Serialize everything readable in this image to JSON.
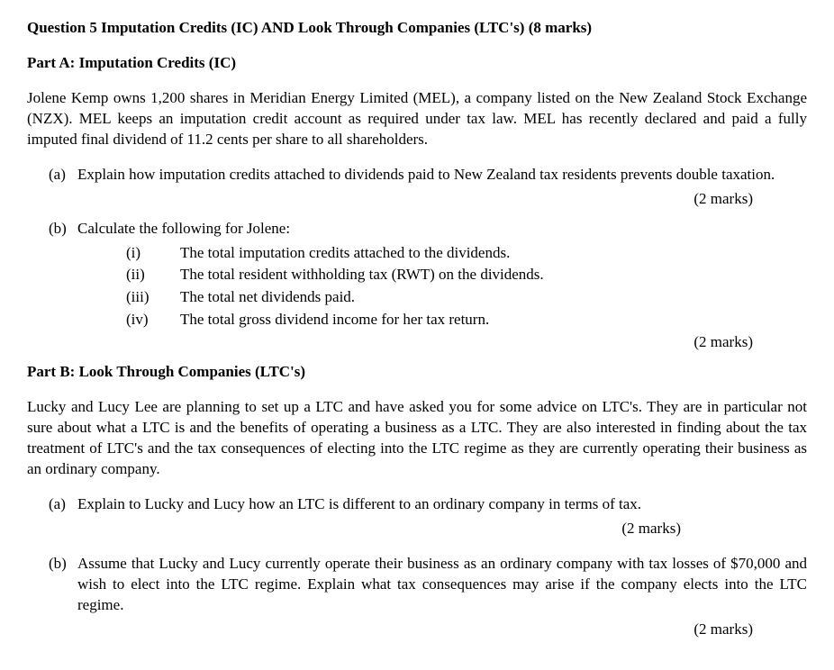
{
  "title": "Question 5 Imputation Credits (IC) AND Look Through Companies (LTC's) (8 marks)",
  "partA": {
    "heading": "Part A: Imputation Credits (IC)",
    "intro": "Jolene Kemp owns 1,200 shares in Meridian Energy Limited (MEL), a company listed on the New Zealand Stock Exchange (NZX). MEL keeps an imputation credit account as required under tax law. MEL has recently declared and paid a fully imputed final dividend of 11.2 cents per share to all shareholders.",
    "a": {
      "label": "(a)",
      "text": "Explain how imputation credits attached to dividends paid to New Zealand tax residents prevents double taxation.",
      "marks": "(2 marks)"
    },
    "b": {
      "label": "(b)",
      "text": "Calculate the following for Jolene:",
      "items": [
        {
          "label": "(i)",
          "text": "The total imputation credits attached to the dividends."
        },
        {
          "label": "(ii)",
          "text": "The total resident withholding tax (RWT) on the dividends."
        },
        {
          "label": "(iii)",
          "text": "The total net dividends paid."
        },
        {
          "label": "(iv)",
          "text": "The total gross dividend income for her tax return."
        }
      ],
      "marks": "(2 marks)"
    }
  },
  "partB": {
    "heading": "Part B: Look Through Companies (LTC's)",
    "intro": "Lucky and Lucy Lee are planning to set up a LTC and have asked you for some advice on LTC's.  They are in particular not sure about what a LTC is and the benefits of operating a business as a LTC. They are also interested in finding about the tax treatment of LTC's and the tax consequences of electing into the LTC regime as they are currently operating their business as an ordinary company.",
    "a": {
      "label": "(a)",
      "text": "Explain to Lucky and Lucy how an LTC is different to an ordinary company in terms of tax.",
      "marks": "(2 marks)"
    },
    "b": {
      "label": "(b)",
      "text": "Assume that Lucky and Lucy currently operate their business as an ordinary company with tax losses of $70,000 and wish to elect into the LTC regime. Explain what tax consequences may arise if the company elects into the LTC regime.",
      "marks": "(2 marks)"
    }
  }
}
